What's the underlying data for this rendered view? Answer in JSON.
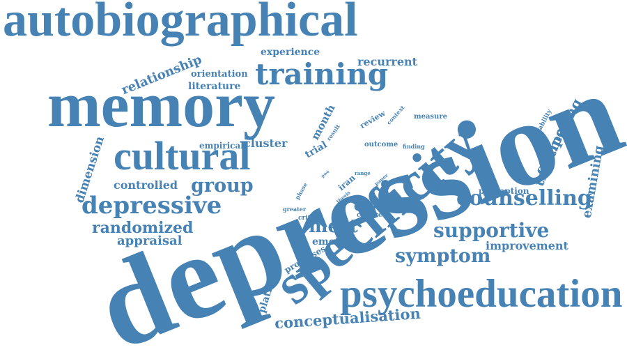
{
  "palette": {
    "text": "#4682b4",
    "background": "#ffffff"
  },
  "words": [
    {
      "text": "depression"
    },
    {
      "text": "autobiographical"
    },
    {
      "text": "memory"
    },
    {
      "text": "specificity"
    },
    {
      "text": "psychoeducation"
    },
    {
      "text": "cultural"
    },
    {
      "text": "training"
    },
    {
      "text": "depressive"
    },
    {
      "text": "counselling"
    },
    {
      "text": "supportive"
    },
    {
      "text": "symptom"
    },
    {
      "text": "group"
    },
    {
      "text": "randomized"
    },
    {
      "text": "mest"
    },
    {
      "text": "conceptualisation"
    },
    {
      "text": "treatment"
    },
    {
      "text": "comparing"
    },
    {
      "text": "examining"
    },
    {
      "text": "dimension"
    },
    {
      "text": "relationship"
    },
    {
      "text": "appraisal"
    },
    {
      "text": "controlled"
    },
    {
      "text": "improvement"
    },
    {
      "text": "platform"
    },
    {
      "text": "emotion"
    },
    {
      "text": "recurrent"
    },
    {
      "text": "experience"
    },
    {
      "text": "literature"
    },
    {
      "text": "orientation"
    },
    {
      "text": "cluster"
    },
    {
      "text": "empirical"
    },
    {
      "text": "month"
    },
    {
      "text": "trial"
    },
    {
      "text": "outcome"
    },
    {
      "text": "processes"
    },
    {
      "text": "perception"
    },
    {
      "text": "review"
    },
    {
      "text": "measure"
    },
    {
      "text": "variability"
    },
    {
      "text": "context"
    },
    {
      "text": "finding"
    },
    {
      "text": "result"
    },
    {
      "text": "iran"
    },
    {
      "text": "thesis"
    },
    {
      "text": "paper"
    },
    {
      "text": "range"
    },
    {
      "text": "phase"
    },
    {
      "text": "greater"
    },
    {
      "text": "critical"
    },
    {
      "text": "culture"
    },
    {
      "text": "pwe"
    }
  ]
}
